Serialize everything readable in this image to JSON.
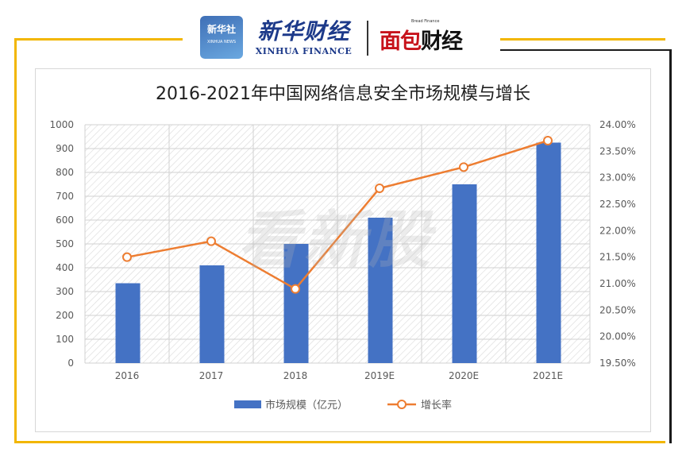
{
  "header": {
    "logo_xinhua_cn": "新华社",
    "logo_xinhua_en": "XINHUA NEWS",
    "logo_finance_cn": "新华财经",
    "logo_finance_en": "XINHUA FINANCE",
    "logo_mianbao_tag": "Bread Finance",
    "logo_mianbao_cn_red": "面包",
    "logo_mianbao_cn_black": "财经"
  },
  "watermark": "看新股",
  "chart_data": {
    "type": "bar",
    "title": "2016-2021年中国网络信息安全市场规模与增长",
    "categories": [
      "2016",
      "2017",
      "2018",
      "2019E",
      "2020E",
      "2021E"
    ],
    "series": [
      {
        "name": "市场规模（亿元）",
        "type": "bar",
        "axis": "left",
        "values": [
          335,
          410,
          500,
          610,
          750,
          925
        ],
        "color": "#4472c4"
      },
      {
        "name": "增长率",
        "type": "line",
        "axis": "right",
        "values": [
          21.5,
          21.8,
          20.9,
          22.8,
          23.2,
          23.7
        ],
        "color": "#ed7d31"
      }
    ],
    "y_left": {
      "min": 0,
      "max": 1000,
      "step": 100,
      "ticks": [
        "0",
        "100",
        "200",
        "300",
        "400",
        "500",
        "600",
        "700",
        "800",
        "900",
        "1000"
      ]
    },
    "y_right": {
      "min": 19.5,
      "max": 24.0,
      "step": 0.5,
      "ticks": [
        "19.50%",
        "20.00%",
        "20.50%",
        "21.00%",
        "21.50%",
        "22.00%",
        "22.50%",
        "23.00%",
        "23.50%",
        "24.00%"
      ]
    },
    "grid": true,
    "legend": "bottom"
  }
}
